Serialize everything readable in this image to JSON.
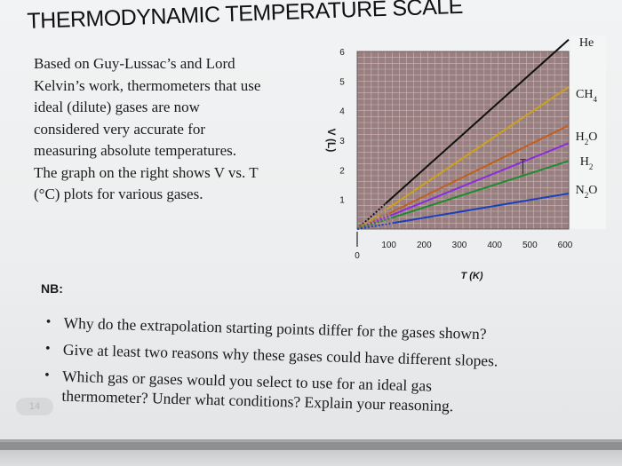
{
  "title": "THERMODYNAMIC TEMPERATURE SCALE",
  "intro_lines": [
    "Based on Guy-Lussac’s and Lord",
    "Kelvin’s work, thermometers that use",
    "ideal (dilute) gases are now",
    "considered very accurate for",
    "measuring absolute temperatures.",
    "The graph on the right shows V vs. T",
    "(°C) plots for various gases."
  ],
  "nb_label": "NB:",
  "questions": [
    [
      "Why do the extrapolation starting points differ for the gases shown?"
    ],
    [
      "Give at least two reasons why these gases could have different slopes."
    ],
    [
      "Which gas or gases would you select to use for an ideal gas",
      "thermometer? Under what conditions? Explain your reasoning."
    ]
  ],
  "page_badge": "14",
  "chart_data": {
    "type": "line",
    "xlabel": "T (K)",
    "ylabel": "V (L)",
    "x_ticks": [
      "100",
      "200",
      "300",
      "400",
      "500",
      "600"
    ],
    "x_origin_label": "0",
    "y_ticks": [
      "1",
      "2",
      "3",
      "4",
      "5",
      "6"
    ],
    "xlim": [
      0,
      600
    ],
    "ylim": [
      0,
      6
    ],
    "grid": true,
    "series": [
      {
        "name": "He",
        "color": "#111111",
        "x": [
          0,
          600
        ],
        "y": [
          0,
          6.4
        ]
      },
      {
        "name": "CH4",
        "color": "#caa21c",
        "x": [
          0,
          600
        ],
        "y": [
          0,
          4.8
        ]
      },
      {
        "name": "H2O",
        "color": "#c0601e",
        "x": [
          0,
          600
        ],
        "y": [
          0,
          3.5
        ]
      },
      {
        "name": "H2",
        "color": "#8a2be0",
        "x": [
          0,
          600
        ],
        "y": [
          0,
          2.9
        ]
      },
      {
        "name": "N2O",
        "color": "#1f8a2e",
        "x": [
          0,
          600
        ],
        "y": [
          0,
          2.3
        ]
      },
      {
        "name": "",
        "color": "#1f3fb8",
        "x": [
          0,
          600
        ],
        "y": [
          0,
          1.2
        ]
      }
    ]
  }
}
